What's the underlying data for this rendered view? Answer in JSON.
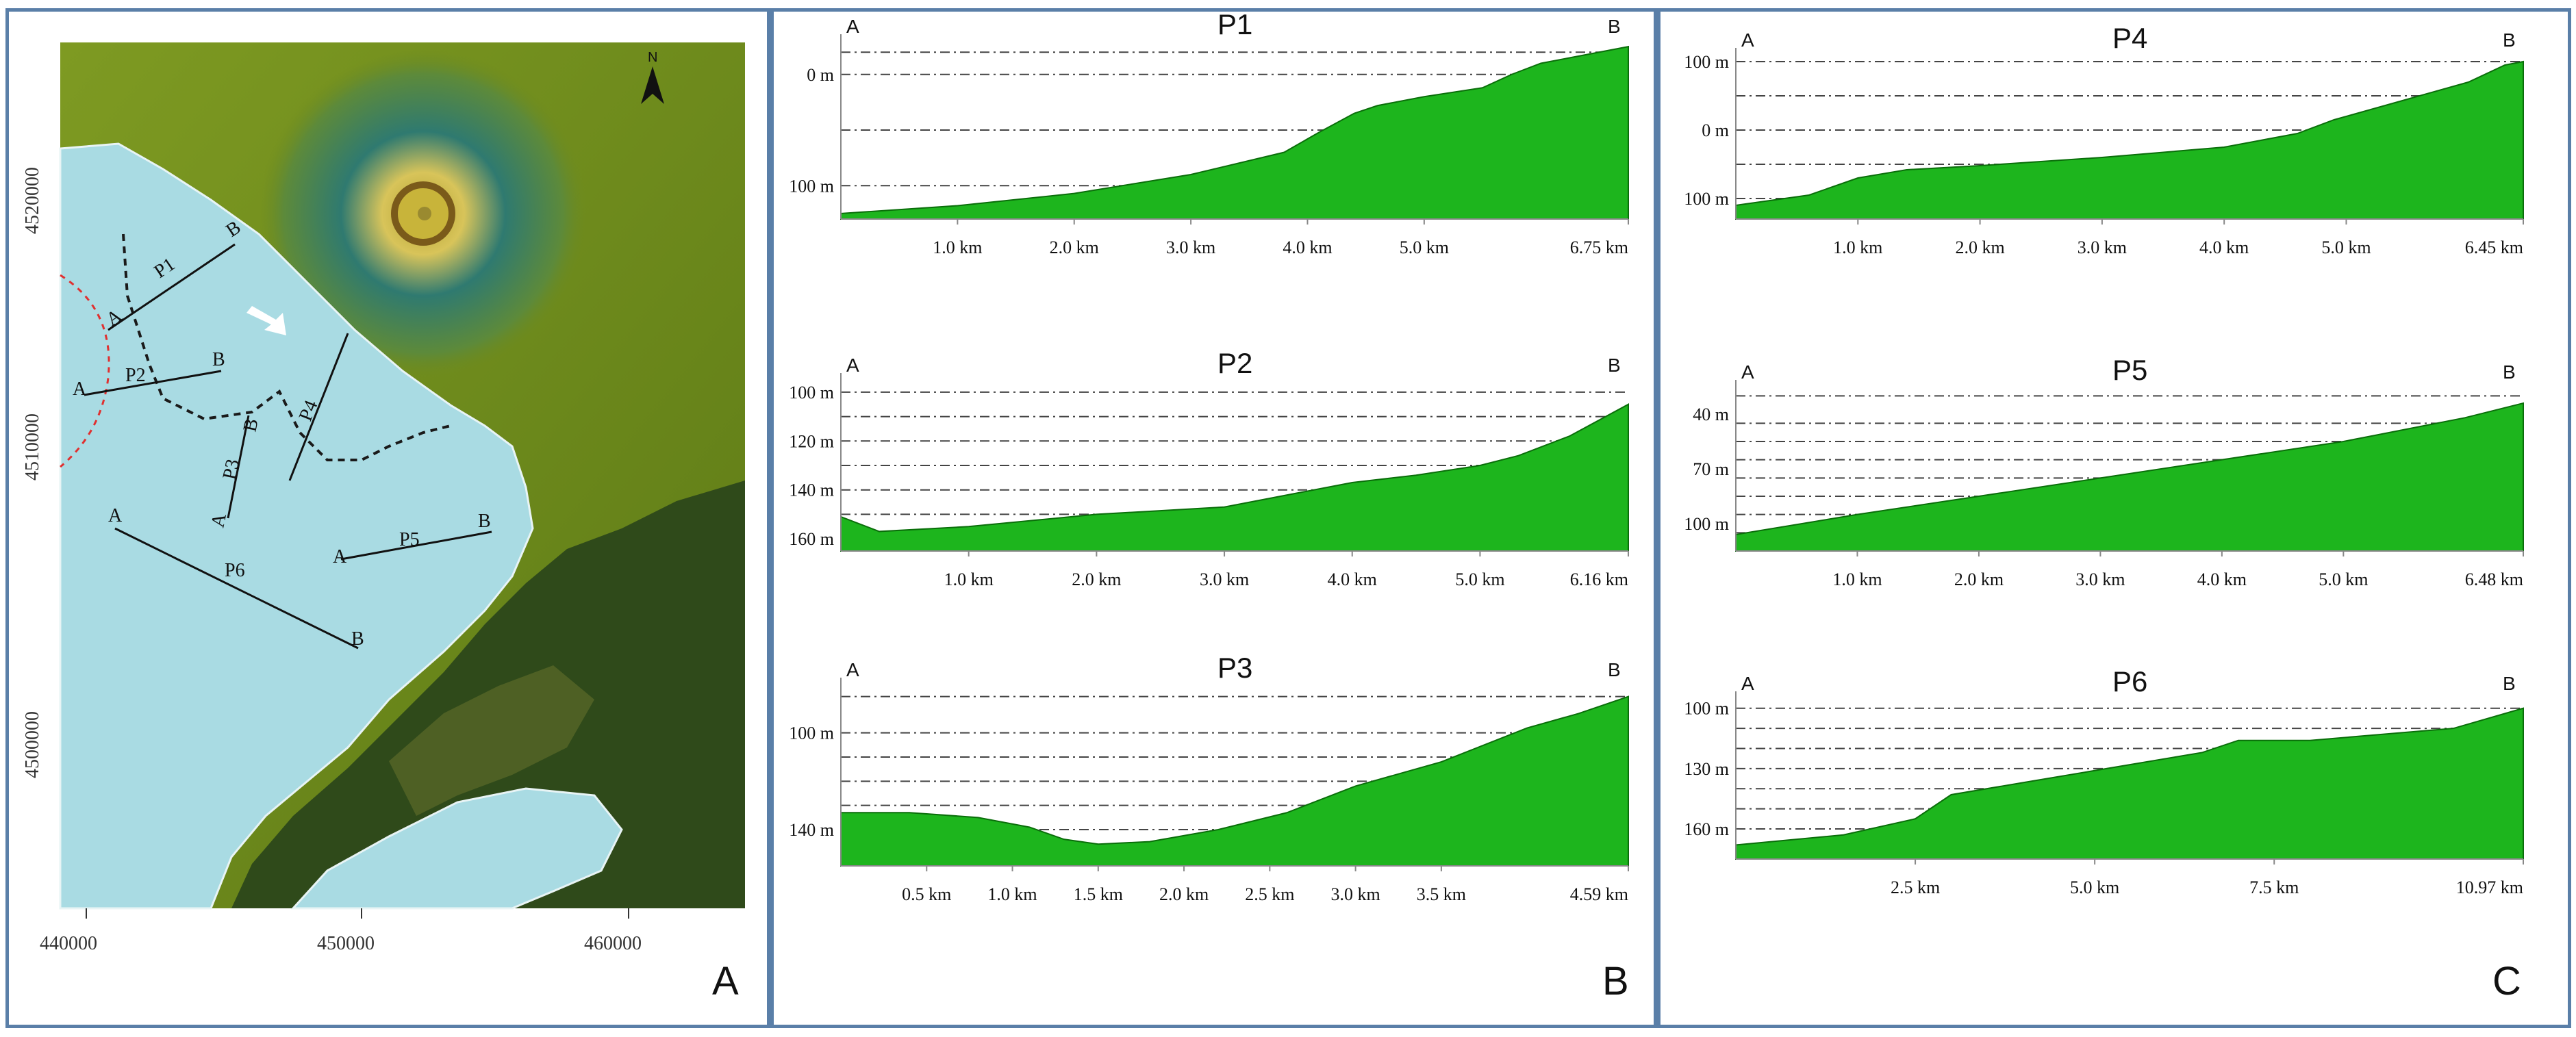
{
  "panels": {
    "a": {
      "letter": "A"
    },
    "b": {
      "letter": "B"
    },
    "c": {
      "letter": "C"
    }
  },
  "map": {
    "north_label": "N",
    "x_ticks": [
      "440000",
      "450000",
      "460000"
    ],
    "y_ticks": [
      "4520000",
      "4510000",
      "4500000"
    ],
    "profile_lines": [
      {
        "name": "P1",
        "start": "A",
        "end": "B"
      },
      {
        "name": "P2",
        "start": "A",
        "end": "B"
      },
      {
        "name": "P3",
        "start": "A",
        "end": "B"
      },
      {
        "name": "P4",
        "start": "A",
        "end": "B"
      },
      {
        "name": "P5",
        "start": "A",
        "end": "B"
      },
      {
        "name": "P6",
        "start": "A",
        "end": "B"
      }
    ],
    "colors": {
      "shelf": "#a9dbe3",
      "land": "#6e8a1e",
      "volcano": "#c8b43a",
      "rough": "#2f4a1a"
    }
  },
  "chart_data": [
    {
      "type": "area",
      "title": "P1",
      "start_label": "A",
      "end_label": "B",
      "y_tick_labels": [
        "0 m",
        "100 m"
      ],
      "x_tick_labels": [
        "1.0 km",
        "2.0 km",
        "3.0 km",
        "4.0 km",
        "5.0 km",
        "6.75 km"
      ],
      "x_max": 6.75,
      "color": "#1db51d",
      "x": [
        0,
        1.0,
        2.0,
        3.0,
        3.8,
        4.1,
        4.4,
        4.6,
        5.0,
        5.5,
        5.75,
        6.0,
        6.4,
        6.75
      ],
      "y": [
        -135,
        -128,
        -117,
        -100,
        -80,
        -62,
        -45,
        -38,
        -30,
        -22,
        -10,
        0,
        8,
        15
      ]
    },
    {
      "type": "area",
      "title": "P2",
      "start_label": "A",
      "end_label": "B",
      "y_tick_labels": [
        "100 m",
        "120 m",
        "140 m",
        "160 m"
      ],
      "x_tick_labels": [
        "1.0 km",
        "2.0 km",
        "3.0 km",
        "4.0 km",
        "5.0 km",
        "6.16 km"
      ],
      "x_max": 6.16,
      "color": "#1db51d",
      "x": [
        0,
        0.3,
        1.0,
        2.0,
        3.0,
        3.6,
        4.0,
        4.5,
        5.0,
        5.3,
        5.7,
        6.16
      ],
      "y": [
        -151,
        -157,
        -155,
        -150,
        -147,
        -141,
        -137,
        -134,
        -130,
        -126,
        -118,
        -105
      ]
    },
    {
      "type": "area",
      "title": "P3",
      "start_label": "A",
      "end_label": "B",
      "y_tick_labels": [
        "100 m",
        "140 m"
      ],
      "x_tick_labels": [
        "0.5 km",
        "1.0 km",
        "1.5 km",
        "2.0 km",
        "2.5 km",
        "3.0 km",
        "3.5 km",
        "4.59 km"
      ],
      "x_max": 4.59,
      "color": "#1db51d",
      "x": [
        0,
        0.4,
        0.8,
        1.1,
        1.3,
        1.5,
        1.8,
        2.2,
        2.6,
        3.0,
        3.5,
        4.0,
        4.3,
        4.59
      ],
      "y": [
        -133,
        -133,
        -135,
        -139,
        -144,
        -146,
        -145,
        -140,
        -133,
        -122,
        -112,
        -98,
        -92,
        -85
      ]
    },
    {
      "type": "area",
      "title": "P4",
      "start_label": "A",
      "end_label": "B",
      "y_tick_labels": [
        "100 m",
        "0 m",
        "100 m"
      ],
      "x_tick_labels": [
        "1.0 km",
        "2.0 km",
        "3.0 km",
        "4.0 km",
        "5.0 km",
        "6.45 km"
      ],
      "x_max": 6.45,
      "color": "#1db51d",
      "x": [
        0,
        0.6,
        1.0,
        1.4,
        2.0,
        3.0,
        4.0,
        4.6,
        4.9,
        5.5,
        6.0,
        6.3,
        6.45
      ],
      "y": [
        -110,
        -95,
        -70,
        -58,
        -52,
        -40,
        -25,
        -5,
        15,
        45,
        70,
        95,
        100
      ]
    },
    {
      "type": "area",
      "title": "P5",
      "start_label": "A",
      "end_label": "B",
      "y_tick_labels": [
        "40 m",
        "70 m",
        "100 m"
      ],
      "x_tick_labels": [
        "1.0 km",
        "2.0 km",
        "3.0 km",
        "4.0 km",
        "5.0 km",
        "6.48 km"
      ],
      "x_max": 6.48,
      "color": "#1db51d",
      "x": [
        0,
        1.0,
        2.0,
        3.0,
        4.0,
        5.0,
        6.0,
        6.48
      ],
      "y": [
        -106,
        -95,
        -85,
        -75,
        -65,
        -55,
        -42,
        -34
      ]
    },
    {
      "type": "area",
      "title": "P6",
      "start_label": "A",
      "end_label": "B",
      "y_tick_labels": [
        "100 m",
        "130 m",
        "160 m"
      ],
      "x_tick_labels": [
        "2.5 km",
        "5.0 km",
        "7.5 km",
        "10.97 km"
      ],
      "x_max": 10.97,
      "color": "#1db51d",
      "x": [
        0,
        1.5,
        2.5,
        3.0,
        4.0,
        5.0,
        6.5,
        7.0,
        8.0,
        10.0,
        10.97
      ],
      "y": [
        -168,
        -163,
        -155,
        -143,
        -137,
        -131,
        -122,
        -116,
        -116,
        -110,
        -100
      ]
    }
  ]
}
